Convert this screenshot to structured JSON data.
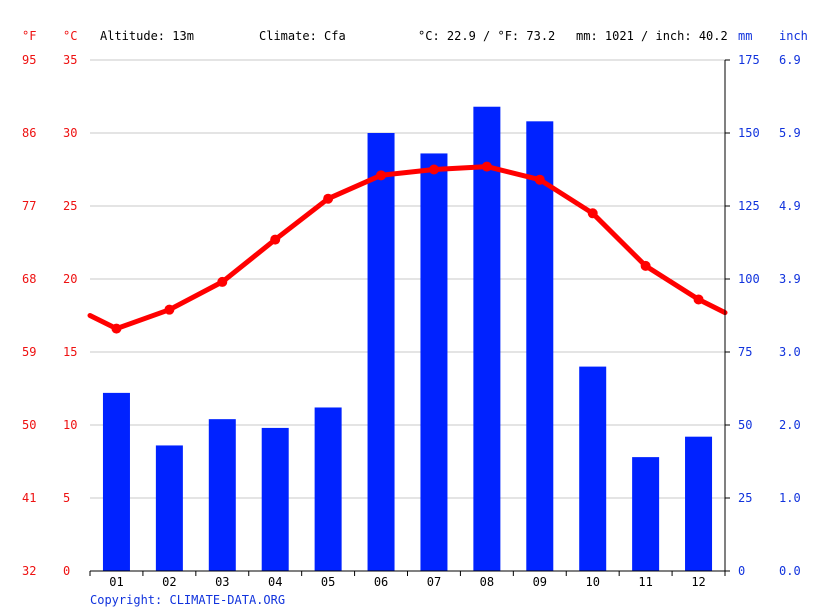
{
  "header": {
    "unit_f": "°F",
    "unit_c": "°C",
    "altitude": "Altitude: 13m",
    "climate": "Climate: Cfa",
    "temp_avg": "°C: 22.9 / °F: 73.2",
    "precip_total": "mm: 1021 / inch: 40.2",
    "unit_mm": "mm",
    "unit_inch": "inch"
  },
  "footer": {
    "copyright": "Copyright: CLIMATE-DATA.ORG"
  },
  "colors": {
    "temperature": "#ff0000",
    "precipitation": "#0022ff",
    "temp_label": "#ee1111",
    "precip_label": "#1133dd",
    "grid": "#c8c8c8"
  },
  "chart_data": {
    "type": "bar",
    "categories": [
      "01",
      "02",
      "03",
      "04",
      "05",
      "06",
      "07",
      "08",
      "09",
      "10",
      "11",
      "12"
    ],
    "series": [
      {
        "type": "bar",
        "axis": "right",
        "unit": "mm",
        "values": [
          61,
          43,
          52,
          49,
          56,
          150,
          143,
          159,
          154,
          70,
          39,
          46
        ]
      },
      {
        "type": "line",
        "axis": "left",
        "unit": "°C",
        "values": [
          16.6,
          17.9,
          19.8,
          22.7,
          25.5,
          27.1,
          27.5,
          27.7,
          26.8,
          24.5,
          20.9,
          18.6
        ],
        "edge_left": 17.5,
        "edge_right": 17.7
      }
    ],
    "y_left": {
      "label": "°C",
      "range": [
        0,
        35
      ],
      "ticks": [
        "0",
        "5",
        "10",
        "15",
        "20",
        "25",
        "30",
        "35"
      ],
      "ticks_f": [
        "32",
        "41",
        "50",
        "59",
        "68",
        "77",
        "86",
        "95"
      ]
    },
    "y_right": {
      "label": "mm",
      "range": [
        0,
        175
      ],
      "ticks": [
        "0",
        "25",
        "50",
        "75",
        "100",
        "125",
        "150",
        "175"
      ],
      "ticks_inch": [
        "0.0",
        "1.0",
        "2.0",
        "3.0",
        "3.9",
        "4.9",
        "5.9",
        "6.9"
      ]
    },
    "grid": true,
    "legend": "none"
  }
}
